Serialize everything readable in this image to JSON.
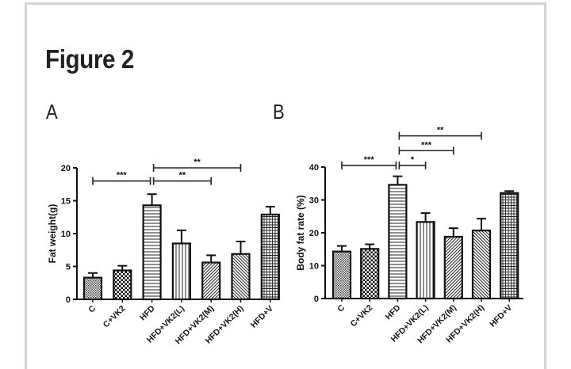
{
  "figure": {
    "title": "Figure 2",
    "panels": [
      "A",
      "B"
    ]
  },
  "chart_data": [
    {
      "panel": "A",
      "type": "bar",
      "title": "",
      "xlabel": "",
      "ylabel": "Fat weight(g)",
      "ylim": [
        0,
        20
      ],
      "yticks": [
        0,
        5,
        10,
        15,
        20
      ],
      "grid": false,
      "categories": [
        "C",
        "C+VK2",
        "HFD",
        "HFD+VK2(L)",
        "HFD+VK2(M)",
        "HFD+VK2(H)",
        "HFD+V"
      ],
      "patterns": [
        "fine-dots",
        "checker",
        "horizontal-lines",
        "vertical-lines",
        "diagonal-forward",
        "diagonal-back",
        "grid"
      ],
      "values": [
        3.3,
        4.4,
        14.3,
        8.5,
        5.6,
        6.9,
        12.9
      ],
      "errors": [
        0.7,
        0.7,
        1.7,
        2.0,
        1.1,
        1.9,
        1.2
      ],
      "significance": [
        {
          "from": 0,
          "to": 2,
          "label": "***",
          "level": 18
        },
        {
          "from": 2,
          "to": 4,
          "label": "**",
          "level": 18
        },
        {
          "from": 2,
          "to": 5,
          "label": "**",
          "level": 20
        }
      ]
    },
    {
      "panel": "B",
      "type": "bar",
      "title": "",
      "xlabel": "",
      "ylabel": "Body fat rate (%)",
      "ylim": [
        0,
        40
      ],
      "yticks": [
        0,
        10,
        20,
        30,
        40
      ],
      "grid": false,
      "categories": [
        "C",
        "C+VK2",
        "HFD",
        "HFD+VK2(L)",
        "HFD+VK2(M)",
        "HFD+VK2(H)",
        "HFD+V"
      ],
      "patterns": [
        "fine-dots",
        "checker",
        "horizontal-lines",
        "vertical-lines",
        "diagonal-forward",
        "diagonal-back",
        "grid"
      ],
      "values": [
        14.3,
        15.1,
        34.6,
        23.3,
        18.8,
        20.7,
        32.1
      ],
      "errors": [
        1.7,
        1.4,
        2.6,
        2.7,
        2.6,
        3.6,
        0.6
      ],
      "significance": [
        {
          "from": 0,
          "to": 2,
          "label": "***",
          "level": 40.5
        },
        {
          "from": 2,
          "to": 3,
          "label": "*",
          "level": 40.5
        },
        {
          "from": 2,
          "to": 4,
          "label": "***",
          "level": 45
        },
        {
          "from": 2,
          "to": 5,
          "label": "**",
          "level": 49.5
        }
      ]
    }
  ]
}
